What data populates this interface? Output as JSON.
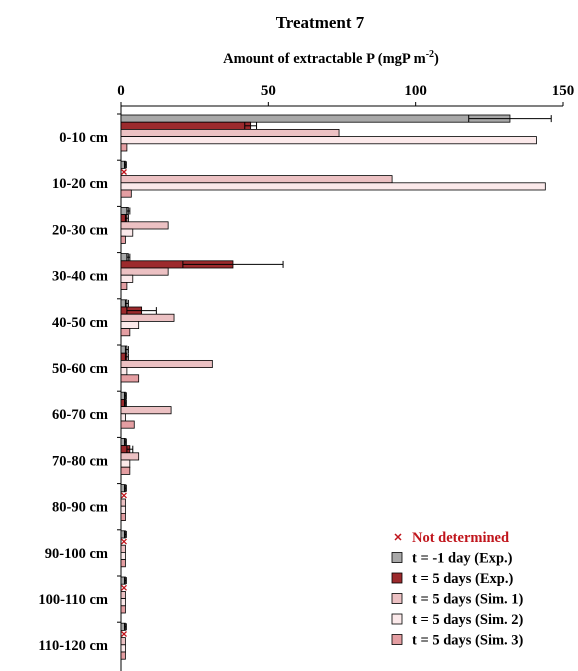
{
  "chart_data": {
    "type": "bar",
    "orientation": "horizontal",
    "title": "Treatment 7",
    "xlabel": "Amount of extractable P (mgP  m",
    "xlabel_sup": "-2",
    "xlabel_close": ")",
    "xlim": [
      0,
      150
    ],
    "xticks": [
      "0",
      "50",
      "100",
      "150"
    ],
    "xaxis_position": "top",
    "categories": [
      "0-10 cm",
      "10-20 cm",
      "20-30 cm",
      "30-40 cm",
      "40-50 cm",
      "50-60 cm",
      "60-70 cm",
      "70-80 cm",
      "80-90 cm",
      "90-100 cm",
      "100-110 cm",
      "110-120 cm"
    ],
    "series": [
      {
        "name": "t = -1 day (Exp.)",
        "color": "#a8a8a8",
        "values": [
          132,
          1.5,
          2.5,
          2.5,
          2,
          2,
          1.5,
          1.5,
          1.5,
          1.5,
          1.5,
          1.5
        ],
        "errors": [
          14,
          0.3,
          0.5,
          0.5,
          0.5,
          0.5,
          0.3,
          0.3,
          0.3,
          0.3,
          0.3,
          0.3
        ]
      },
      {
        "name": "t = 5 days (Exp.)",
        "color": "#9c2a2d",
        "values": [
          44,
          null,
          2,
          38,
          7,
          2,
          1.5,
          3,
          null,
          null,
          null,
          null
        ],
        "errors": [
          2,
          null,
          0.5,
          17,
          5,
          0.5,
          0.3,
          1,
          null,
          null,
          null,
          null
        ]
      },
      {
        "name": "t = 5 days (Sim. 1)",
        "color": "#ecc1c3",
        "values": [
          74,
          92,
          16,
          16,
          18,
          31,
          17,
          6,
          1.5,
          1.5,
          1.5,
          1.5
        ]
      },
      {
        "name": "t = 5 days (Sim. 2)",
        "color": "#fbe9ea",
        "values": [
          141,
          144,
          4,
          4,
          6,
          2,
          1.5,
          3,
          1.5,
          1.5,
          1.5,
          1.5
        ]
      },
      {
        "name": "t = 5 days (Sim. 3)",
        "color": "#e49ea2",
        "values": [
          2,
          3.5,
          1.5,
          2,
          3,
          6,
          4.5,
          3,
          1.5,
          1.5,
          1.5,
          1.5
        ]
      }
    ],
    "not_determined_label": "Not determined",
    "not_determined_color": "#c0151c",
    "legend_position": "bottom-right",
    "grid": false
  }
}
